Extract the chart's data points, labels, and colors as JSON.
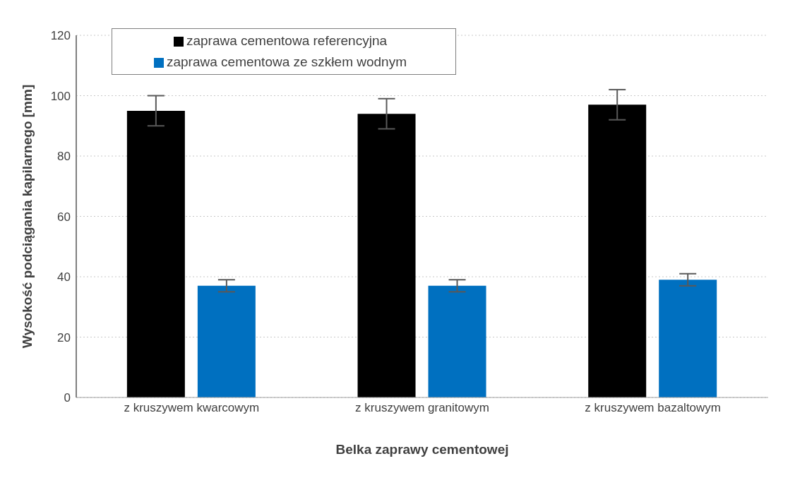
{
  "chart_data": {
    "type": "bar",
    "xlabel": "Belka zaprawy cementowej",
    "ylabel": "Wysokość podciągania kapilarnego [mm]",
    "categories": [
      "z kruszywem kwarcowym",
      "z kruszywem granitowym",
      "z kruszywem bazaltowym"
    ],
    "series": [
      {
        "name": "zaprawa cementowa referencyjna",
        "color": "#000000",
        "values": [
          95,
          94,
          97
        ],
        "errors": [
          5,
          5,
          5
        ]
      },
      {
        "name": "zaprawa cementowa ze szkłem wodnym",
        "color": "#0070c0",
        "values": [
          37,
          37,
          39
        ],
        "errors": [
          2,
          2,
          2
        ]
      }
    ],
    "ylim": [
      0,
      120
    ],
    "yticks": [
      0,
      20,
      40,
      60,
      80,
      100,
      120
    ],
    "grid": "y",
    "legend": "top left"
  }
}
